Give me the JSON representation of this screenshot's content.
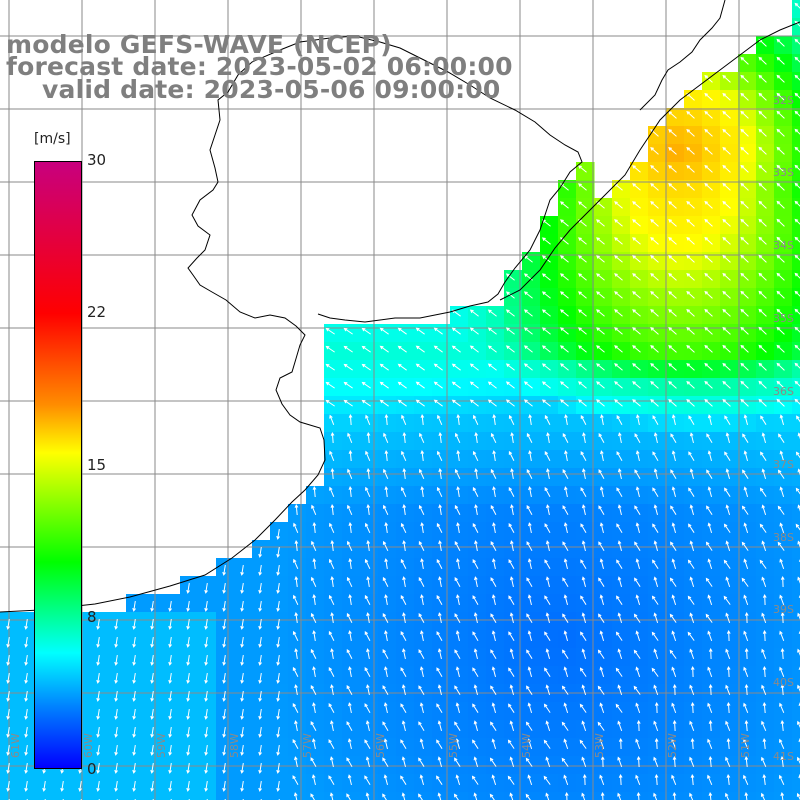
{
  "title": {
    "line1": "modelo GEFS-WAVE (NCEP)",
    "line2": "forecast date: 2023-05-02 06:00:00",
    "line3": "valid date: 2023-05-06 09:00:00"
  },
  "colorbar": {
    "unit": "[m/s]",
    "ticks": [
      "30",
      "22",
      "15",
      "8",
      "0"
    ]
  },
  "map": {
    "lat_labels": [
      "32S",
      "33S",
      "34S",
      "35S",
      "36S",
      "37S",
      "38S",
      "39S",
      "40S",
      "41S"
    ],
    "lon_labels": [
      "61W",
      "60W",
      "59W",
      "58W",
      "57W",
      "56W",
      "55W",
      "54W",
      "53W",
      "52W",
      "51W"
    ]
  },
  "colors": {
    "title_gray": "#7f7f7f",
    "grid": "#888888",
    "coast": "#000000",
    "arrow": "#ffffff"
  }
}
